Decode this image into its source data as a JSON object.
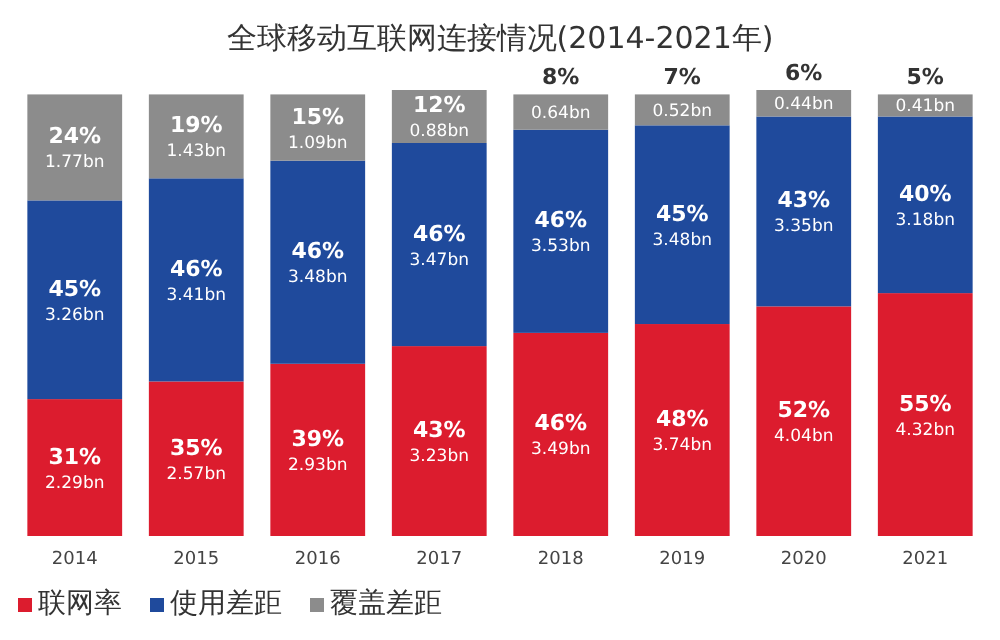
{
  "chart_data": {
    "type": "bar",
    "stacked": true,
    "title": "全球移动互联网连接情况(2014-2021年)",
    "categories": [
      "2014",
      "2015",
      "2016",
      "2017",
      "2018",
      "2019",
      "2020",
      "2021"
    ],
    "legend": "bottom left",
    "series": [
      {
        "name": "联网率",
        "color": "#dc1c2e",
        "values": [
          31,
          35,
          39,
          43,
          46,
          48,
          52,
          55
        ],
        "value_labels": [
          "31%\n2.29bn",
          "35%\n2.57bn",
          "39%\n2.93bn",
          "43%\n3.23bn",
          "46%\n3.49bn",
          "48%\n3.74bn",
          "52%\n4.04bn",
          "55%\n4.32bn"
        ]
      },
      {
        "name": "使用差距",
        "color": "#1f4a9c",
        "values": [
          45,
          46,
          46,
          46,
          46,
          45,
          43,
          40
        ],
        "value_labels": [
          "45%\n3.26bn",
          "46%\n3.41bn",
          "46%\n3.48bn",
          "46%\n3.47bn",
          "46%\n3.53bn",
          "45%\n3.48bn",
          "43%\n3.35bn",
          "40%\n3.18bn"
        ]
      },
      {
        "name": "覆盖差距",
        "color": "#8c8c8c",
        "values": [
          24,
          19,
          15,
          12,
          8,
          7,
          6,
          5
        ],
        "value_labels": [
          "24%\n1.77bn",
          "19%\n1.43bn",
          "15%\n1.09bn",
          "12%\n0.88bn",
          "8%\n0.64bn",
          "7%\n0.52bn",
          "6%\n0.44bn",
          "5%\n0.41bn"
        ]
      }
    ]
  }
}
